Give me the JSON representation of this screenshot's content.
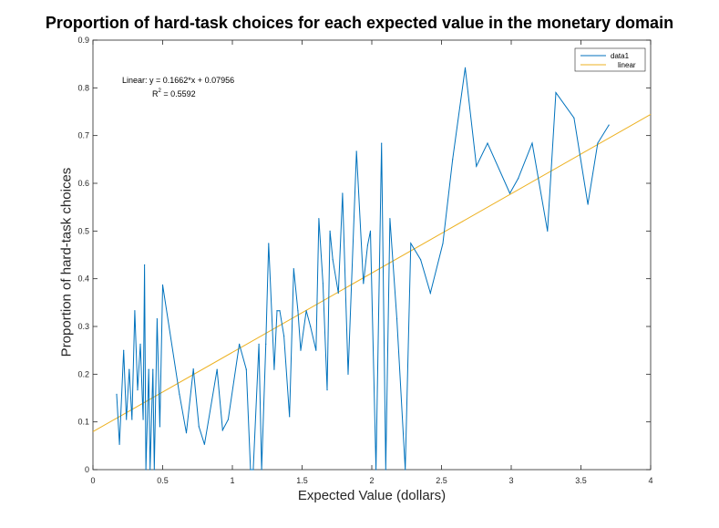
{
  "chart_data": {
    "type": "line",
    "title": "Proportion of hard-task choices for each expected value in the monetary domain",
    "xlabel": "Expected Value (dollars)",
    "ylabel": "Proportion of hard-task choices",
    "xlim": [
      0,
      4
    ],
    "ylim": [
      0,
      0.9
    ],
    "x_ticks": [
      "0",
      "0.5",
      "1",
      "1.5",
      "2",
      "2.5",
      "3",
      "3.5",
      "4"
    ],
    "y_ticks": [
      "0",
      "0.1",
      "0.2",
      "0.3",
      "0.4",
      "0.5",
      "0.6",
      "0.7",
      "0.8",
      "0.9"
    ],
    "grid": false,
    "legend_position": "top-right",
    "series": [
      {
        "name": "data1",
        "color": "#0072bd",
        "x": [
          0.17,
          0.19,
          0.22,
          0.24,
          0.26,
          0.28,
          0.3,
          0.32,
          0.34,
          0.36,
          0.37,
          0.38,
          0.4,
          0.41,
          0.43,
          0.44,
          0.46,
          0.48,
          0.5,
          0.62,
          0.67,
          0.72,
          0.76,
          0.8,
          0.89,
          0.93,
          0.97,
          1.05,
          1.1,
          1.13,
          1.15,
          1.19,
          1.21,
          1.24,
          1.26,
          1.3,
          1.32,
          1.34,
          1.37,
          1.41,
          1.44,
          1.47,
          1.49,
          1.53,
          1.56,
          1.6,
          1.62,
          1.65,
          1.68,
          1.7,
          1.72,
          1.76,
          1.79,
          1.83,
          1.89,
          1.94,
          1.97,
          1.99,
          2.03,
          2.07,
          2.1,
          2.13,
          2.18,
          2.24,
          2.28,
          2.35,
          2.42,
          2.51,
          2.58,
          2.67,
          2.75,
          2.83,
          2.99,
          3.05,
          3.15,
          3.26,
          3.32,
          3.45,
          3.55,
          3.62,
          3.7
        ],
        "y": [
          0.158,
          0.053,
          0.25,
          0.105,
          0.21,
          0.105,
          0.333,
          0.167,
          0.263,
          0.105,
          0.429,
          0.0,
          0.21,
          0.0,
          0.21,
          0.0,
          0.316,
          0.09,
          0.387,
          0.158,
          0.077,
          0.211,
          0.09,
          0.053,
          0.21,
          0.083,
          0.105,
          0.263,
          0.21,
          0.0,
          0.0,
          0.263,
          0.0,
          0.263,
          0.474,
          0.21,
          0.333,
          0.333,
          0.28,
          0.111,
          0.421,
          0.333,
          0.25,
          0.333,
          0.3,
          0.25,
          0.526,
          0.39,
          0.167,
          0.5,
          0.44,
          0.37,
          0.579,
          0.2,
          0.667,
          0.39,
          0.47,
          0.5,
          0.0,
          0.684,
          0.0,
          0.526,
          0.316,
          0.0,
          0.474,
          0.44,
          0.37,
          0.474,
          0.65,
          0.842,
          0.636,
          0.684,
          0.579,
          0.61,
          0.684,
          0.5,
          0.79,
          0.737,
          0.556,
          0.684,
          0.722
        ]
      },
      {
        "name": "linear",
        "color": "#edb120",
        "fit": {
          "slope": 0.1662,
          "intercept": 0.07956
        }
      }
    ],
    "annotation": {
      "line1": "Linear:  y = 0.1662*x + 0.07956",
      "r2_label": "R",
      "r2_exp": "2",
      "r2_value": " = 0.5592"
    }
  }
}
